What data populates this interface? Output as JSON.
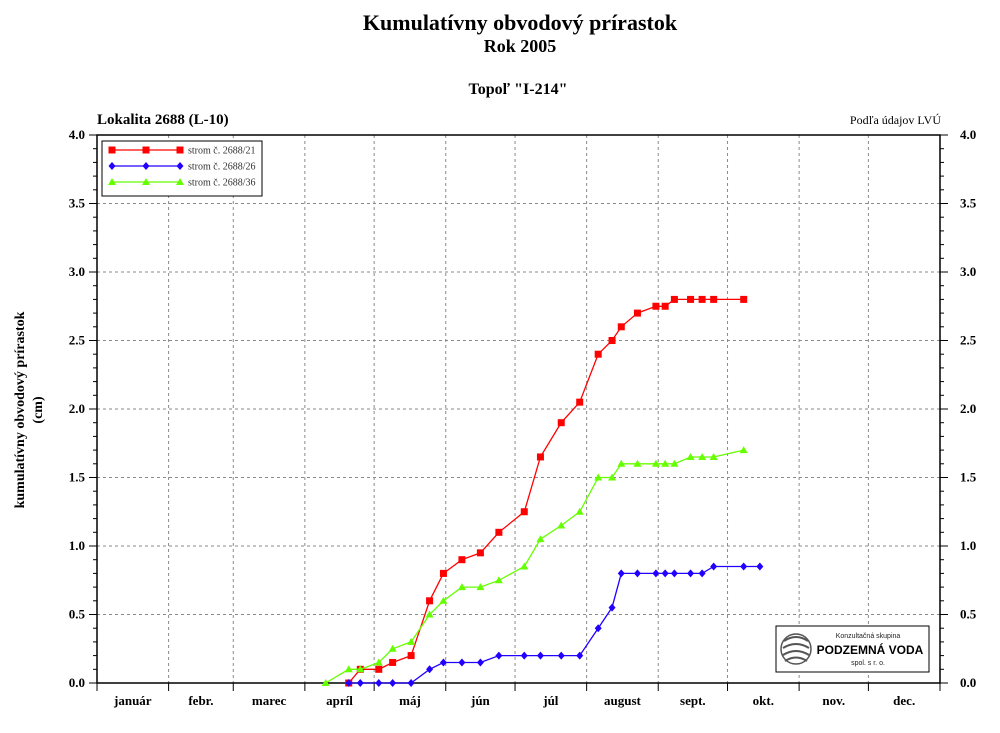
{
  "header": {
    "title": "Kumulatívny obvodový prírastok",
    "year": "Rok 2005",
    "subtitle": "Topoľ \"I-214\"",
    "location": "Lokalita 2688 (L-10)",
    "source": "Podľa údajov LVÚ"
  },
  "logo": {
    "line1": "Konzultačná skupina",
    "line2": "PODZEMNÁ VODA",
    "line3": "spol. s r. o."
  },
  "colors": {
    "series1": "#ff0000",
    "series2": "#2200ff",
    "series3": "#66ff00"
  },
  "chart_data": {
    "type": "line",
    "title": "Kumulatívny obvodový prírastok",
    "ylabel": "kumulatívny obvodový prírastok (cm)",
    "ylabel_lines": [
      "kumulatívny obvodový prírastok",
      "(cm)"
    ],
    "xlabel": "",
    "ylim": [
      0,
      4.0
    ],
    "xlim": [
      1,
      366
    ],
    "grid": true,
    "legend": "top-left",
    "x_unit": "day of year 2005",
    "y_ticks": [
      "0.0",
      "0.5",
      "1.0",
      "1.5",
      "2.0",
      "2.5",
      "3.0",
      "3.5",
      "4.0"
    ],
    "months": [
      "január",
      "febr.",
      "marec",
      "apríl",
      "máj",
      "jún",
      "júl",
      "august",
      "sept.",
      "okt.",
      "nov.",
      "dec."
    ],
    "series": [
      {
        "name": "strom č. 2688/21",
        "marker": "square",
        "color": "#ff0000",
        "x": [
          110,
          115,
          123,
          129,
          137,
          145,
          151,
          159,
          167,
          175,
          186,
          193,
          202,
          210,
          218,
          224,
          228,
          235,
          243,
          247,
          251,
          258,
          263,
          268,
          281
        ],
        "y": [
          0.0,
          0.1,
          0.1,
          0.15,
          0.2,
          0.6,
          0.8,
          0.9,
          0.95,
          1.1,
          1.25,
          1.65,
          1.9,
          2.05,
          2.4,
          2.5,
          2.6,
          2.7,
          2.75,
          2.75,
          2.8,
          2.8,
          2.8,
          2.8,
          2.8
        ]
      },
      {
        "name": "strom č. 2688/26",
        "marker": "diamond",
        "color": "#2200ff",
        "x": [
          110,
          115,
          123,
          129,
          137,
          145,
          151,
          159,
          167,
          175,
          186,
          193,
          202,
          210,
          218,
          224,
          228,
          235,
          243,
          247,
          251,
          258,
          263,
          268,
          281,
          288
        ],
        "y": [
          0.0,
          0.0,
          0.0,
          0.0,
          0.0,
          0.1,
          0.15,
          0.15,
          0.15,
          0.2,
          0.2,
          0.2,
          0.2,
          0.2,
          0.4,
          0.55,
          0.8,
          0.8,
          0.8,
          0.8,
          0.8,
          0.8,
          0.8,
          0.85,
          0.85,
          0.85
        ]
      },
      {
        "name": "strom č. 2688/36",
        "marker": "triangle",
        "color": "#66ff00",
        "x": [
          100,
          110,
          115,
          123,
          129,
          137,
          145,
          151,
          159,
          167,
          175,
          186,
          193,
          202,
          210,
          218,
          224,
          228,
          235,
          243,
          247,
          251,
          258,
          263,
          268,
          281
        ],
        "y": [
          0.0,
          0.1,
          0.1,
          0.15,
          0.25,
          0.3,
          0.5,
          0.6,
          0.7,
          0.7,
          0.75,
          0.85,
          1.05,
          1.15,
          1.25,
          1.5,
          1.5,
          1.6,
          1.6,
          1.6,
          1.6,
          1.6,
          1.65,
          1.65,
          1.65,
          1.7
        ]
      }
    ]
  }
}
